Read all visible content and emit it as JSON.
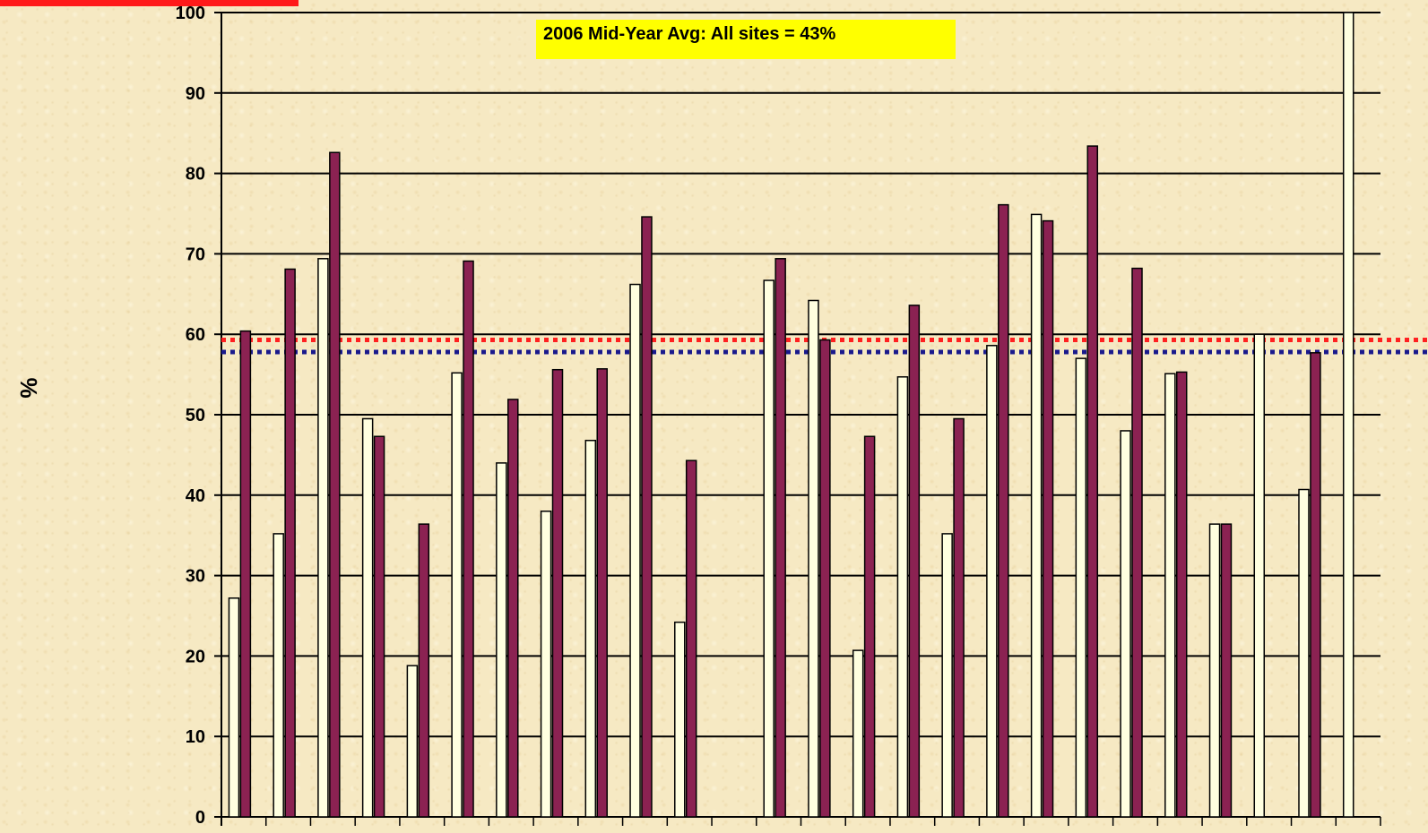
{
  "chart_data": {
    "type": "bar",
    "ylabel": "%",
    "ylim": [
      0,
      100
    ],
    "yticks": [
      0,
      10,
      20,
      30,
      40,
      50,
      60,
      70,
      80,
      90,
      100
    ],
    "grid": true,
    "annotation": "2006 Mid-Year Avg: All sites = 43%",
    "series": [
      {
        "values": [
          27.2,
          35.2,
          69.4,
          49.5,
          18.8,
          55.2,
          44.0,
          38.0,
          46.8,
          66.2,
          24.2,
          null,
          66.7,
          64.2,
          20.7,
          54.7,
          35.2,
          58.6,
          74.9,
          57.0,
          48.0,
          55.1,
          36.4,
          60.0,
          40.7,
          100
        ]
      },
      {
        "values": [
          60.4,
          68.1,
          82.6,
          47.3,
          36.4,
          69.1,
          51.9,
          55.6,
          55.7,
          74.6,
          44.3,
          null,
          69.4,
          59.3,
          47.3,
          63.6,
          49.5,
          76.1,
          74.1,
          83.4,
          68.2,
          55.3,
          36.4,
          null,
          57.7,
          null
        ]
      }
    ],
    "reference_lines": [
      {
        "value": 59.3,
        "color": "#ff2020",
        "style": "dotted"
      },
      {
        "value": 57.8,
        "color": "#1a1a8c",
        "style": "dotted"
      }
    ],
    "colors": {
      "series_1": "#ffffe0",
      "series_2": "#8b2252",
      "callout_bg": "#ffff00",
      "corner_banner": "#ff1a1a"
    }
  }
}
